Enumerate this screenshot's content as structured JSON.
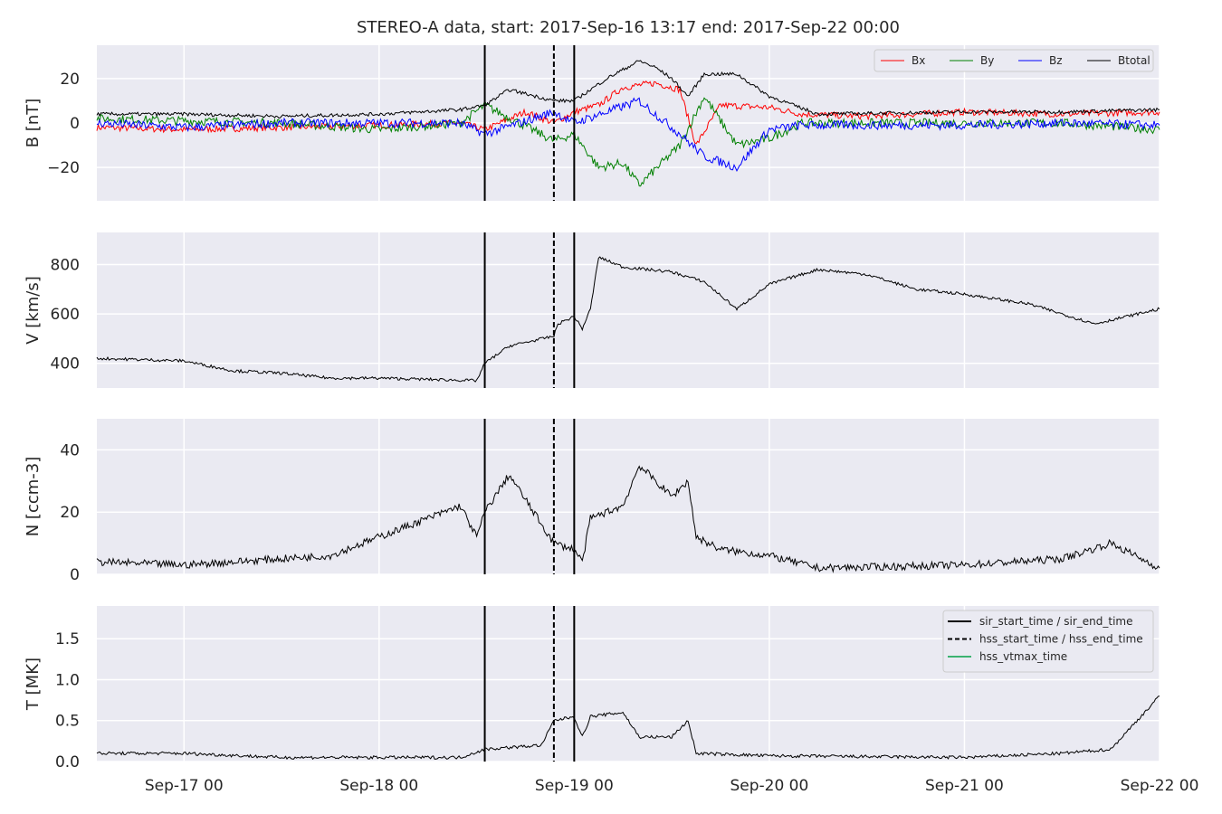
{
  "title": "STEREO-A data, start: 2017-Sep-16 13:17  end: 2017-Sep-22 00:00",
  "x_axis": {
    "start": "2017-09-16T13:17",
    "end": "2017-09-22T00:00",
    "ticks": [
      {
        "t": "2017-09-17T00:00",
        "label": "Sep-17 00"
      },
      {
        "t": "2017-09-18T00:00",
        "label": "Sep-18 00"
      },
      {
        "t": "2017-09-19T00:00",
        "label": "Sep-19 00"
      },
      {
        "t": "2017-09-20T00:00",
        "label": "Sep-20 00"
      },
      {
        "t": "2017-09-21T00:00",
        "label": "Sep-21 00"
      },
      {
        "t": "2017-09-22T00:00",
        "label": "Sep-22 00"
      }
    ]
  },
  "event_lines": [
    {
      "t": "2017-09-18T13:00",
      "style": "solid"
    },
    {
      "t": "2017-09-18T21:30",
      "style": "dashed"
    },
    {
      "t": "2017-09-19T00:00",
      "style": "solid"
    }
  ],
  "colors": {
    "background": "#eaeaf2",
    "grid": "#ffffff",
    "Bx": "#ff0000",
    "By": "#008000",
    "Bz": "#0000ff",
    "Btotal": "#000000",
    "hss_vtmax": "#3cb371"
  },
  "chart_data": [
    {
      "type": "line",
      "ylabel": "B [nT]",
      "ylim": [
        -35,
        35
      ],
      "yticks": [
        20,
        0,
        -20
      ],
      "ytick_labels": [
        "20",
        "0",
        "−20"
      ],
      "grid": true,
      "legend": {
        "placement": "top-right",
        "ncol": 4,
        "entries": [
          "Bx",
          "By",
          "Bz",
          "Btotal"
        ]
      },
      "series": [
        {
          "name": "Bx",
          "color": "#ff0000",
          "noise": 1.5,
          "points": [
            [
              "2017-09-16T13:17",
              -2
            ],
            [
              "2017-09-17T00:00",
              -3
            ],
            [
              "2017-09-17T12:00",
              -2
            ],
            [
              "2017-09-18T00:00",
              -1
            ],
            [
              "2017-09-18T10:00",
              0
            ],
            [
              "2017-09-18T13:00",
              -3
            ],
            [
              "2017-09-18T18:00",
              5
            ],
            [
              "2017-09-18T21:30",
              0
            ],
            [
              "2017-09-19T00:00",
              5
            ],
            [
              "2017-09-19T03:00",
              8
            ],
            [
              "2017-09-19T06:00",
              16
            ],
            [
              "2017-09-19T10:00",
              18
            ],
            [
              "2017-09-19T13:00",
              15
            ],
            [
              "2017-09-19T15:00",
              -10
            ],
            [
              "2017-09-19T18:00",
              8
            ],
            [
              "2017-09-20T00:00",
              7
            ],
            [
              "2017-09-20T04:00",
              4
            ],
            [
              "2017-09-20T12:00",
              3
            ],
            [
              "2017-09-21T00:00",
              5
            ],
            [
              "2017-09-21T12:00",
              4
            ],
            [
              "2017-09-22T00:00",
              5
            ]
          ]
        },
        {
          "name": "By",
          "color": "#008000",
          "noise": 2,
          "points": [
            [
              "2017-09-16T13:17",
              2
            ],
            [
              "2017-09-17T00:00",
              1
            ],
            [
              "2017-09-17T12:00",
              0
            ],
            [
              "2017-09-18T00:00",
              -3
            ],
            [
              "2017-09-18T10:00",
              0
            ],
            [
              "2017-09-18T13:00",
              8
            ],
            [
              "2017-09-18T21:30",
              -8
            ],
            [
              "2017-09-19T00:00",
              -5
            ],
            [
              "2017-09-19T03:00",
              -20
            ],
            [
              "2017-09-19T06:00",
              -18
            ],
            [
              "2017-09-19T08:00",
              -28
            ],
            [
              "2017-09-19T13:00",
              -10
            ],
            [
              "2017-09-19T16:00",
              12
            ],
            [
              "2017-09-19T20:00",
              -10
            ],
            [
              "2017-09-20T00:00",
              -7
            ],
            [
              "2017-09-20T04:00",
              0
            ],
            [
              "2017-09-21T00:00",
              0
            ],
            [
              "2017-09-21T12:00",
              0
            ],
            [
              "2017-09-22T00:00",
              -3
            ]
          ]
        },
        {
          "name": "Bz",
          "color": "#0000ff",
          "noise": 2,
          "points": [
            [
              "2017-09-16T13:17",
              0
            ],
            [
              "2017-09-17T00:00",
              -2
            ],
            [
              "2017-09-17T12:00",
              0
            ],
            [
              "2017-09-18T00:00",
              0
            ],
            [
              "2017-09-18T10:00",
              0
            ],
            [
              "2017-09-18T13:00",
              -5
            ],
            [
              "2017-09-18T21:30",
              5
            ],
            [
              "2017-09-19T00:00",
              0
            ],
            [
              "2017-09-19T04:00",
              5
            ],
            [
              "2017-09-19T08:00",
              10
            ],
            [
              "2017-09-19T13:00",
              -5
            ],
            [
              "2017-09-19T16:00",
              -15
            ],
            [
              "2017-09-19T20:00",
              -20
            ],
            [
              "2017-09-20T00:00",
              -3
            ],
            [
              "2017-09-20T04:00",
              -1
            ],
            [
              "2017-09-21T00:00",
              -1
            ],
            [
              "2017-09-21T12:00",
              0
            ],
            [
              "2017-09-22T00:00",
              -1
            ]
          ]
        },
        {
          "name": "Btotal",
          "color": "#000000",
          "noise": 0.8,
          "points": [
            [
              "2017-09-16T13:17",
              4
            ],
            [
              "2017-09-17T00:00",
              4
            ],
            [
              "2017-09-17T12:00",
              3
            ],
            [
              "2017-09-18T00:00",
              4
            ],
            [
              "2017-09-18T10:00",
              6
            ],
            [
              "2017-09-18T13:00",
              8
            ],
            [
              "2017-09-18T16:00",
              15
            ],
            [
              "2017-09-18T21:30",
              10
            ],
            [
              "2017-09-19T00:00",
              10
            ],
            [
              "2017-09-19T04:00",
              20
            ],
            [
              "2017-09-19T08:00",
              28
            ],
            [
              "2017-09-19T10:00",
              25
            ],
            [
              "2017-09-19T12:00",
              20
            ],
            [
              "2017-09-19T14:00",
              12
            ],
            [
              "2017-09-19T16:00",
              22
            ],
            [
              "2017-09-19T20:00",
              22
            ],
            [
              "2017-09-20T00:00",
              12
            ],
            [
              "2017-09-20T06:00",
              4
            ],
            [
              "2017-09-21T00:00",
              5
            ],
            [
              "2017-09-21T12:00",
              5
            ],
            [
              "2017-09-22T00:00",
              6
            ]
          ]
        }
      ]
    },
    {
      "type": "line",
      "ylabel": "V [km/s]",
      "ylim": [
        300,
        930
      ],
      "yticks": [
        800,
        600,
        400
      ],
      "ytick_labels": [
        "800",
        "600",
        "400"
      ],
      "grid": true,
      "series": [
        {
          "color": "#000000",
          "noise": 6,
          "points": [
            [
              "2017-09-16T13:17",
              420
            ],
            [
              "2017-09-17T00:00",
              410
            ],
            [
              "2017-09-17T06:00",
              370
            ],
            [
              "2017-09-17T12:00",
              360
            ],
            [
              "2017-09-17T18:00",
              340
            ],
            [
              "2017-09-18T00:00",
              340
            ],
            [
              "2017-09-18T06:00",
              335
            ],
            [
              "2017-09-18T12:00",
              330
            ],
            [
              "2017-09-18T13:00",
              400
            ],
            [
              "2017-09-18T16:00",
              470
            ],
            [
              "2017-09-18T21:30",
              510
            ],
            [
              "2017-09-18T22:00",
              560
            ],
            [
              "2017-09-19T00:00",
              590
            ],
            [
              "2017-09-19T01:00",
              540
            ],
            [
              "2017-09-19T02:00",
              620
            ],
            [
              "2017-09-19T03:00",
              830
            ],
            [
              "2017-09-19T06:00",
              790
            ],
            [
              "2017-09-19T12:00",
              770
            ],
            [
              "2017-09-19T16:00",
              730
            ],
            [
              "2017-09-19T20:00",
              620
            ],
            [
              "2017-09-20T00:00",
              720
            ],
            [
              "2017-09-20T06:00",
              780
            ],
            [
              "2017-09-20T12:00",
              760
            ],
            [
              "2017-09-20T18:00",
              700
            ],
            [
              "2017-09-21T00:00",
              680
            ],
            [
              "2017-09-21T08:00",
              640
            ],
            [
              "2017-09-21T16:00",
              560
            ],
            [
              "2017-09-22T00:00",
              620
            ]
          ]
        }
      ]
    },
    {
      "type": "line",
      "ylabel": "N [ccm-3]",
      "ylim": [
        0,
        50
      ],
      "yticks": [
        40,
        20,
        0
      ],
      "ytick_labels": [
        "40",
        "20",
        "0"
      ],
      "grid": true,
      "series": [
        {
          "color": "#000000",
          "noise": 1.2,
          "points": [
            [
              "2017-09-16T13:17",
              4
            ],
            [
              "2017-09-17T00:00",
              3
            ],
            [
              "2017-09-17T12:00",
              5
            ],
            [
              "2017-09-17T18:00",
              6
            ],
            [
              "2017-09-18T00:00",
              12
            ],
            [
              "2017-09-18T06:00",
              18
            ],
            [
              "2017-09-18T10:00",
              22
            ],
            [
              "2017-09-18T12:00",
              12
            ],
            [
              "2017-09-18T13:00",
              20
            ],
            [
              "2017-09-18T16:00",
              32
            ],
            [
              "2017-09-18T18:00",
              24
            ],
            [
              "2017-09-18T21:30",
              10
            ],
            [
              "2017-09-19T00:00",
              8
            ],
            [
              "2017-09-19T01:00",
              4
            ],
            [
              "2017-09-19T02:00",
              18
            ],
            [
              "2017-09-19T06:00",
              22
            ],
            [
              "2017-09-19T08:00",
              35
            ],
            [
              "2017-09-19T12:00",
              25
            ],
            [
              "2017-09-19T14:00",
              30
            ],
            [
              "2017-09-19T15:00",
              12
            ],
            [
              "2017-09-19T18:00",
              8
            ],
            [
              "2017-09-20T00:00",
              6
            ],
            [
              "2017-09-20T06:00",
              2
            ],
            [
              "2017-09-21T00:00",
              3
            ],
            [
              "2017-09-21T12:00",
              5
            ],
            [
              "2017-09-21T18:00",
              10
            ],
            [
              "2017-09-22T00:00",
              2
            ]
          ]
        }
      ]
    },
    {
      "type": "line",
      "ylabel": "T [MK]",
      "ylim": [
        0,
        1.9
      ],
      "yticks": [
        1.5,
        1.0,
        0.5,
        0.0
      ],
      "ytick_labels": [
        "1.5",
        "1.0",
        "0.5",
        "0.0"
      ],
      "grid": true,
      "legend": {
        "placement": "top-right",
        "entries": [
          {
            "label": "sir_start_time / sir_end_time",
            "style": "solid",
            "color": "#000000"
          },
          {
            "label": "hss_start_time / hss_end_time",
            "style": "dashed",
            "color": "#000000"
          },
          {
            "label": "hss_vtmax_time",
            "style": "solid",
            "color": "#3cb371"
          }
        ]
      },
      "series": [
        {
          "color": "#000000",
          "noise": 0.02,
          "points": [
            [
              "2017-09-16T13:17",
              0.1
            ],
            [
              "2017-09-17T00:00",
              0.1
            ],
            [
              "2017-09-17T12:00",
              0.05
            ],
            [
              "2017-09-18T00:00",
              0.05
            ],
            [
              "2017-09-18T10:00",
              0.05
            ],
            [
              "2017-09-18T13:00",
              0.15
            ],
            [
              "2017-09-18T20:00",
              0.2
            ],
            [
              "2017-09-18T21:30",
              0.5
            ],
            [
              "2017-09-19T00:00",
              0.55
            ],
            [
              "2017-09-19T01:00",
              0.3
            ],
            [
              "2017-09-19T02:00",
              0.55
            ],
            [
              "2017-09-19T06:00",
              0.6
            ],
            [
              "2017-09-19T08:00",
              0.3
            ],
            [
              "2017-09-19T12:00",
              0.3
            ],
            [
              "2017-09-19T14:00",
              0.5
            ],
            [
              "2017-09-19T15:00",
              0.1
            ],
            [
              "2017-09-20T00:00",
              0.07
            ],
            [
              "2017-09-21T00:00",
              0.05
            ],
            [
              "2017-09-21T12:00",
              0.1
            ],
            [
              "2017-09-21T18:00",
              0.15
            ],
            [
              "2017-09-22T00:00",
              0.8
            ]
          ]
        }
      ]
    }
  ]
}
